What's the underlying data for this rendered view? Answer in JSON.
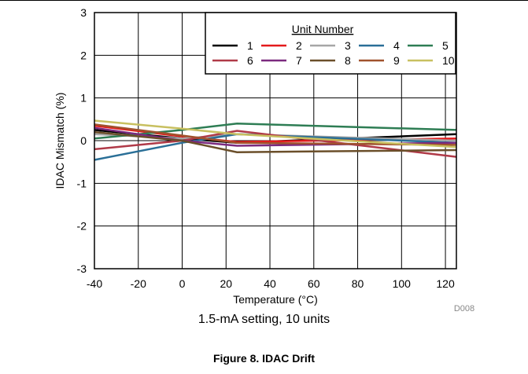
{
  "chart_data": {
    "type": "line",
    "title": "",
    "xlabel": "Temperature (°C)",
    "ylabel": "IDAC Mismatch (%)",
    "xlim": [
      -40,
      125
    ],
    "ylim": [
      -3,
      3
    ],
    "x_ticks": [
      -40,
      -20,
      0,
      20,
      40,
      60,
      80,
      100,
      120
    ],
    "x_tick_labels": [
      "-40",
      "-20",
      "0",
      "20",
      "40",
      "60",
      "80",
      "100",
      "120"
    ],
    "y_ticks": [
      -3,
      -2,
      -1,
      0,
      1,
      2,
      3
    ],
    "y_tick_labels": [
      "-3",
      "-2",
      "-1",
      "0",
      "1",
      "2",
      "3"
    ],
    "grid": true,
    "legend": {
      "title": "Unit Number",
      "placement": "top-right",
      "columns": 5
    },
    "x": [
      -40,
      0,
      25,
      125
    ],
    "series": [
      {
        "name": "1",
        "color": "#000000",
        "values": [
          0.25,
          0.05,
          -0.05,
          0.15
        ]
      },
      {
        "name": "2",
        "color": "#e41a1c",
        "values": [
          0.35,
          0.1,
          -0.03,
          0.05
        ]
      },
      {
        "name": "3",
        "color": "#a6a6a6",
        "values": [
          0.15,
          0.05,
          0.15,
          0.0
        ]
      },
      {
        "name": "4",
        "color": "#2a6f97",
        "values": [
          -0.45,
          -0.05,
          0.15,
          -0.05
        ]
      },
      {
        "name": "5",
        "color": "#2e7d54",
        "values": [
          0.05,
          0.25,
          0.4,
          0.25
        ]
      },
      {
        "name": "6",
        "color": "#b03a48",
        "values": [
          -0.2,
          0.0,
          0.23,
          -0.38
        ]
      },
      {
        "name": "7",
        "color": "#7b2a7f",
        "values": [
          0.3,
          0.0,
          -0.12,
          -0.05
        ]
      },
      {
        "name": "8",
        "color": "#6b4f2a",
        "values": [
          0.2,
          0.0,
          -0.27,
          -0.22
        ]
      },
      {
        "name": "9",
        "color": "#a0522d",
        "values": [
          0.38,
          0.12,
          -0.05,
          -0.1
        ]
      },
      {
        "name": "10",
        "color": "#c8c060",
        "values": [
          0.47,
          0.28,
          0.15,
          -0.15
        ]
      }
    ]
  },
  "doc_code": "D008",
  "caption": "1.5-mA setting, 10 units",
  "figure_title": "Figure 8. IDAC Drift"
}
